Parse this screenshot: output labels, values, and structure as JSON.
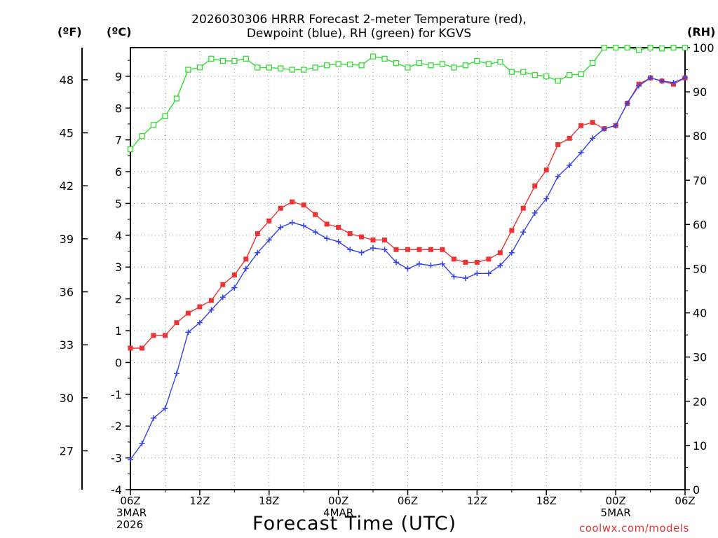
{
  "chart_data": {
    "type": "line",
    "title_line1": "2026030306 HRRR Forecast 2-meter Temperature (red),",
    "title_line2": "Dewpoint (blue), RH (green) for KGVS",
    "unit_labels": {
      "fahrenheit": "(ºF)",
      "celsius": "(ºC)",
      "rh": "(RH)"
    },
    "xlabel": "Forecast Time (UTC)",
    "credit": "coolwx.com/models",
    "x_hours": [
      0,
      1,
      2,
      3,
      4,
      5,
      6,
      7,
      8,
      9,
      10,
      11,
      12,
      13,
      14,
      15,
      16,
      17,
      18,
      19,
      20,
      21,
      22,
      23,
      24,
      25,
      26,
      27,
      28,
      29,
      30,
      31,
      32,
      33,
      34,
      35,
      36,
      37,
      38,
      39,
      40,
      41,
      42,
      43,
      44,
      45,
      46,
      47,
      48
    ],
    "xlim": [
      0,
      48
    ],
    "x_ticks": [
      {
        "hour": 0,
        "lines": [
          "06Z",
          "3MAR",
          "2026"
        ]
      },
      {
        "hour": 6,
        "lines": [
          "12Z"
        ]
      },
      {
        "hour": 12,
        "lines": [
          "18Z"
        ]
      },
      {
        "hour": 18,
        "lines": [
          "00Z",
          "4MAR"
        ]
      },
      {
        "hour": 24,
        "lines": [
          "06Z"
        ]
      },
      {
        "hour": 30,
        "lines": [
          "12Z"
        ]
      },
      {
        "hour": 36,
        "lines": [
          "18Z"
        ]
      },
      {
        "hour": 42,
        "lines": [
          "00Z",
          "5MAR"
        ]
      },
      {
        "hour": 48,
        "lines": [
          "06Z"
        ]
      }
    ],
    "ylim_celsius": [
      -4,
      9.9
    ],
    "y_ticks_celsius": [
      "-4",
      "-3",
      "-2",
      "-1",
      "0",
      "1",
      "2",
      "3",
      "4",
      "5",
      "6",
      "7",
      "8",
      "9"
    ],
    "y_ticks_fahrenheit": [
      "27",
      "30",
      "33",
      "36",
      "39",
      "42",
      "45",
      "48"
    ],
    "ylim_rh": [
      0,
      100
    ],
    "y_ticks_rh": [
      "0",
      "10",
      "20",
      "30",
      "40",
      "50",
      "60",
      "70",
      "80",
      "90",
      "100"
    ],
    "grid": true,
    "series": [
      {
        "name": "Temperature",
        "axis": "celsius",
        "color": "#ee3333",
        "marker": "filled-square",
        "values": [
          0.45,
          0.45,
          0.85,
          0.85,
          1.25,
          1.55,
          1.75,
          1.95,
          2.45,
          2.75,
          3.25,
          4.05,
          4.45,
          4.85,
          5.05,
          4.95,
          4.65,
          4.35,
          4.25,
          4.05,
          3.95,
          3.85,
          3.85,
          3.55,
          3.55,
          3.55,
          3.55,
          3.55,
          3.25,
          3.15,
          3.15,
          3.25,
          3.45,
          4.15,
          4.85,
          5.55,
          6.05,
          6.85,
          7.05,
          7.45,
          7.55,
          7.35,
          7.45,
          8.15,
          8.75,
          8.95,
          8.85,
          8.75,
          8.95
        ]
      },
      {
        "name": "Dewpoint",
        "axis": "celsius",
        "color": "#3344ee",
        "marker": "plus",
        "values": [
          -3.05,
          -2.55,
          -1.75,
          -1.45,
          -0.35,
          0.95,
          1.25,
          1.65,
          2.05,
          2.35,
          2.95,
          3.45,
          3.85,
          4.25,
          4.4,
          4.3,
          4.1,
          3.9,
          3.8,
          3.55,
          3.45,
          3.6,
          3.55,
          3.15,
          2.95,
          3.1,
          3.05,
          3.1,
          2.7,
          2.65,
          2.8,
          2.8,
          3.05,
          3.45,
          4.1,
          4.7,
          5.15,
          5.85,
          6.2,
          6.6,
          7.05,
          7.35,
          7.45,
          8.15,
          8.7,
          8.95,
          8.85,
          8.8,
          8.95
        ]
      },
      {
        "name": "RH",
        "axis": "rh",
        "color": "#33dd33",
        "marker": "open-square",
        "values": [
          77.0,
          80.0,
          82.5,
          84.5,
          88.5,
          95.0,
          95.5,
          97.5,
          97.0,
          97.0,
          97.5,
          95.5,
          95.5,
          95.3,
          95.0,
          95.0,
          95.5,
          96.0,
          96.3,
          96.2,
          96.0,
          98.0,
          97.5,
          96.5,
          95.5,
          96.5,
          96.0,
          96.3,
          95.5,
          96.0,
          97.0,
          96.3,
          96.8,
          94.5,
          94.5,
          93.8,
          93.5,
          92.5,
          93.8,
          94.0,
          96.5,
          100.0,
          100.0,
          100.0,
          99.5,
          100.0,
          99.8,
          100.0,
          100.0
        ]
      }
    ]
  }
}
